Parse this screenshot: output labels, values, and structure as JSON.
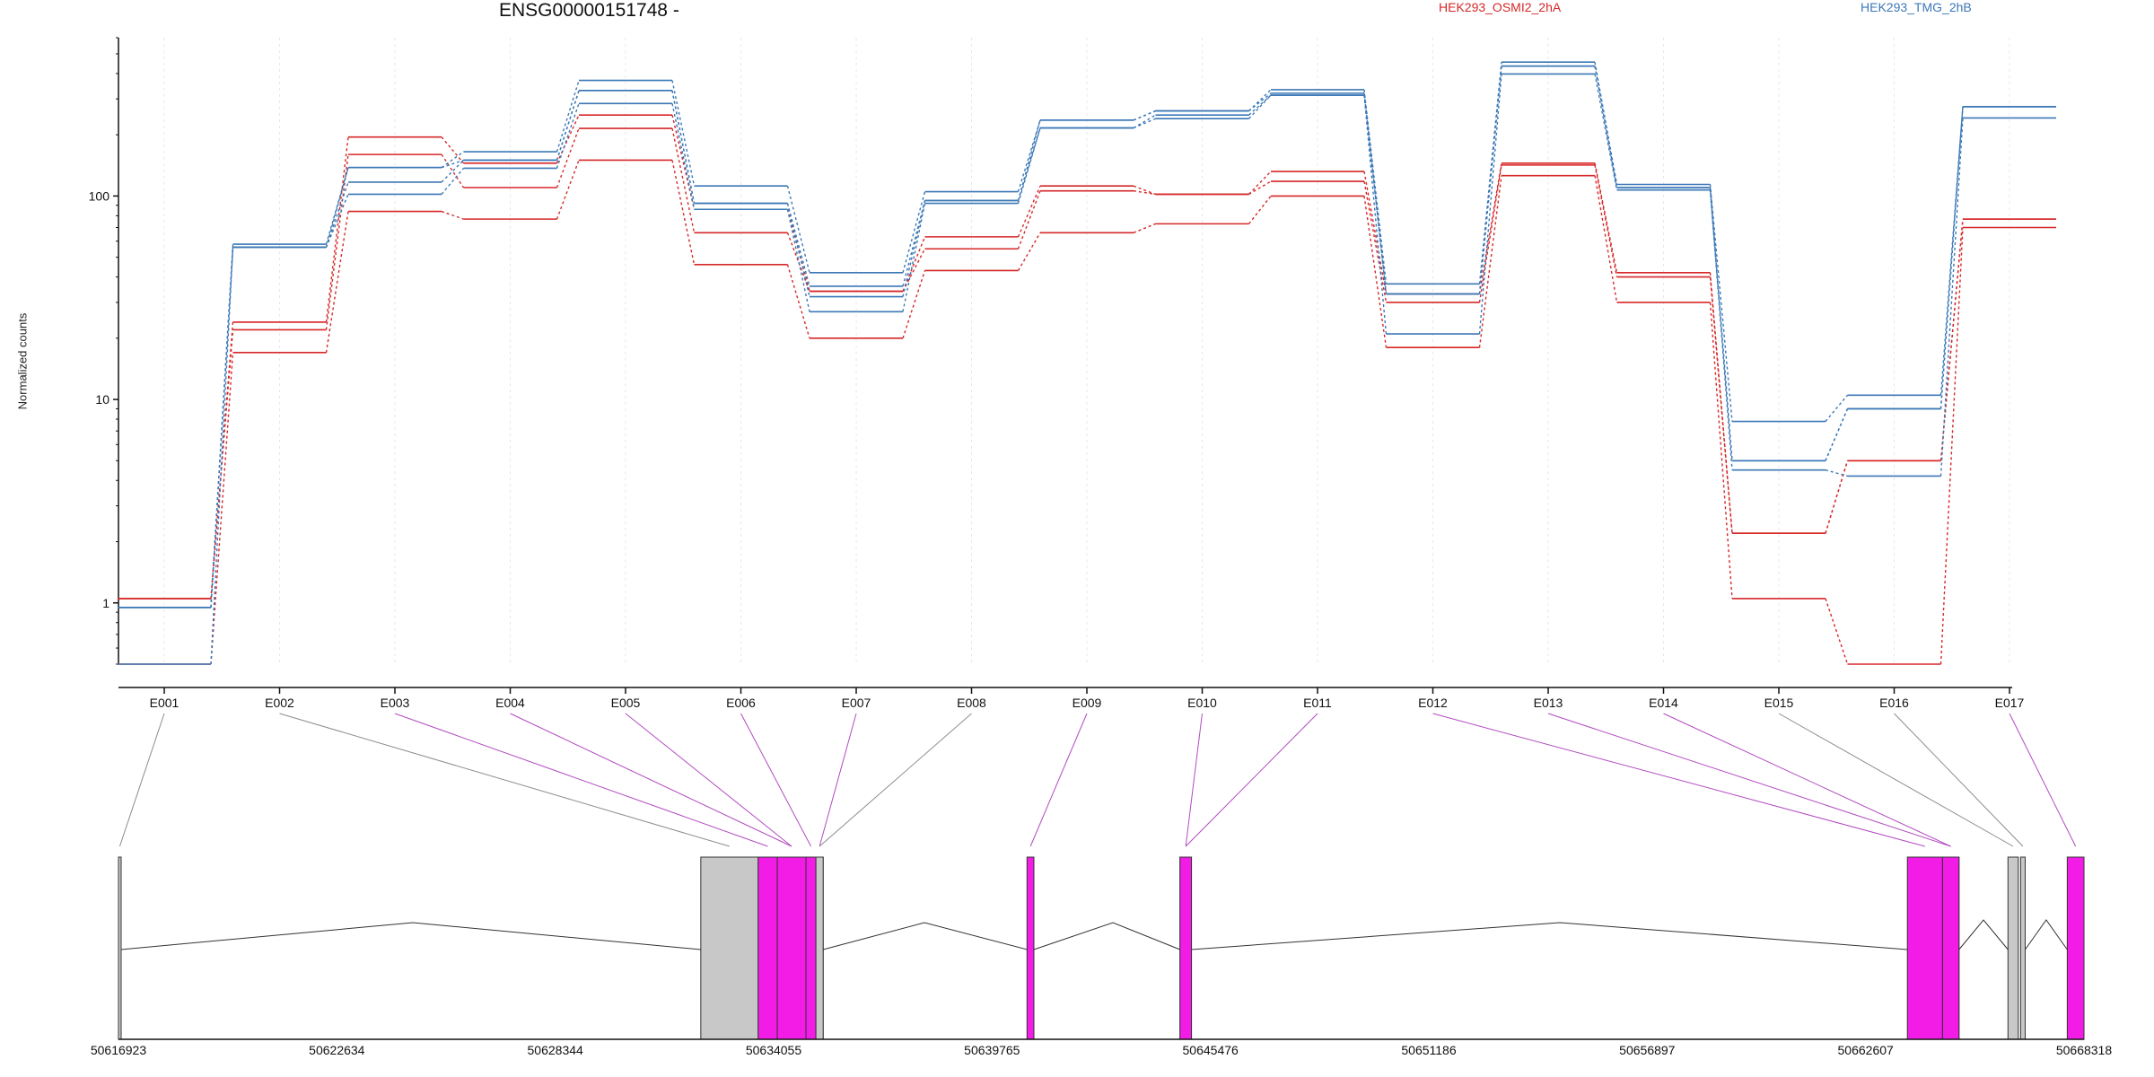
{
  "chart_data": {
    "type": "line",
    "title": "ENSG00000151748 -",
    "ylabel": "Normalized counts",
    "yscale": "log",
    "ylim": [
      0.5,
      600
    ],
    "yticks": [
      1,
      10,
      100
    ],
    "ytick_labels": [
      "1",
      "10",
      "100"
    ],
    "categories": [
      "E001",
      "E002",
      "E003",
      "E004",
      "E005",
      "E006",
      "E007",
      "E008",
      "E009",
      "E010",
      "E011",
      "E012",
      "E013",
      "E014",
      "E015",
      "E016",
      "E017"
    ],
    "legend": [
      {
        "name": "HEK293_OSMI2_2hA",
        "color": "#d62728"
      },
      {
        "name": "HEK293_TMG_2hB",
        "color": "#3b78b6"
      }
    ],
    "series": [
      {
        "group": "HEK293_OSMI2_2hA",
        "values": [
          1.05,
          24,
          195,
          145,
          250,
          86,
          34,
          63,
          112,
          102,
          132,
          33,
          145,
          42,
          2.2,
          5.0,
          77
        ]
      },
      {
        "group": "HEK293_OSMI2_2hA",
        "values": [
          1.05,
          22,
          160,
          110,
          215,
          66,
          34,
          55,
          106,
          102,
          118,
          30,
          142,
          40,
          2.2,
          5.0,
          77
        ]
      },
      {
        "group": "HEK293_OSMI2_2hA",
        "values": [
          0.5,
          17,
          84,
          77,
          150,
          46,
          20,
          43,
          66,
          73,
          100,
          18,
          126,
          30,
          1.05,
          0.5,
          70
        ]
      },
      {
        "group": "HEK293_TMG_2hB",
        "values": [
          0.95,
          58,
          138,
          165,
          370,
          112,
          42,
          105,
          236,
          262,
          333,
          37,
          455,
          114,
          7.8,
          10.5,
          275
        ]
      },
      {
        "group": "HEK293_TMG_2hB",
        "values": [
          0.95,
          56,
          117,
          150,
          330,
          92,
          32,
          95,
          216,
          250,
          313,
          33,
          435,
          110,
          5.0,
          9.0,
          275
        ]
      },
      {
        "group": "HEK293_TMG_2hB",
        "values": [
          0.95,
          56,
          102,
          137,
          285,
          86,
          27,
          92,
          216,
          240,
          313,
          21,
          398,
          107,
          4.5,
          4.2,
          242
        ]
      },
      {
        "group": "HEK293_TMG_2hB",
        "values": [
          0.5,
          56,
          138,
          150,
          330,
          92,
          36,
          95,
          236,
          262,
          320,
          33,
          435,
          110,
          5.0,
          9.0,
          275
        ]
      }
    ],
    "gene_model": {
      "coord_min": 50616923,
      "coord_max": 50668318,
      "coordinate_labels": [
        "50616923",
        "50622634",
        "50628344",
        "50634055",
        "50639765",
        "50645476",
        "50651186",
        "50656897",
        "50662607",
        "50668318"
      ],
      "exon_bins": [
        {
          "id": "E001",
          "start": 50616923,
          "end": 50616990,
          "tested": false
        },
        {
          "id": "E002",
          "start": 50632150,
          "end": 50633650,
          "tested": false
        },
        {
          "id": "E003",
          "start": 50633650,
          "end": 50634150,
          "tested": true
        },
        {
          "id": "E004",
          "start": 50634150,
          "end": 50634900,
          "tested": true
        },
        {
          "id": "E005",
          "start": 50634150,
          "end": 50634900,
          "tested": true
        },
        {
          "id": "E006",
          "start": 50634900,
          "end": 50635160,
          "tested": true
        },
        {
          "id": "E007",
          "start": 50635160,
          "end": 50635350,
          "tested": true
        },
        {
          "id": "E008",
          "start": 50635160,
          "end": 50635350,
          "tested": false
        },
        {
          "id": "E009",
          "start": 50640680,
          "end": 50640860,
          "tested": true
        },
        {
          "id": "E010",
          "start": 50644680,
          "end": 50644980,
          "tested": true
        },
        {
          "id": "E011",
          "start": 50644680,
          "end": 50644980,
          "tested": true
        },
        {
          "id": "E012",
          "start": 50663700,
          "end": 50664620,
          "tested": true
        },
        {
          "id": "E013",
          "start": 50664620,
          "end": 50665050,
          "tested": true
        },
        {
          "id": "E014",
          "start": 50664620,
          "end": 50665050,
          "tested": true
        },
        {
          "id": "E015",
          "start": 50666330,
          "end": 50666600,
          "tested": false
        },
        {
          "id": "E016",
          "start": 50666660,
          "end": 50666780,
          "tested": false
        },
        {
          "id": "E017",
          "start": 50667880,
          "end": 50668318,
          "tested": true
        }
      ]
    }
  },
  "colors": {
    "group_a": "#d62728",
    "group_b": "#3b78b6",
    "tested_exon": "#f21ce6",
    "untested_exon": "#c8c8c8",
    "tested_link": "#b24bc0",
    "untested_link": "#8c8c8c",
    "gridline": "#ede3f0"
  }
}
